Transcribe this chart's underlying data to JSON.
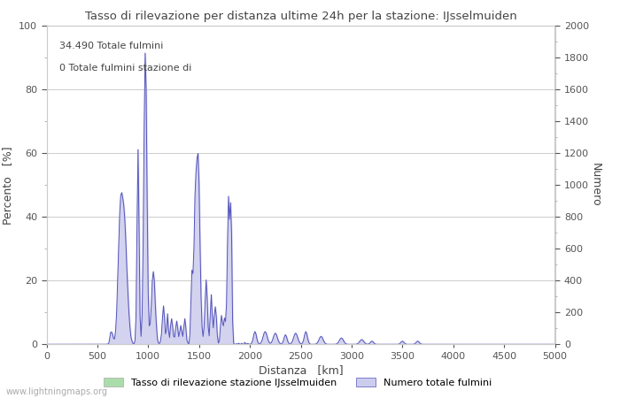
{
  "title": "Tasso di rilevazione per distanza ultime 24h per la stazione: IJsselmuiden",
  "xlabel": "Distanza   [km]",
  "ylabel_left": "Percento   [%]",
  "ylabel_right": "Numero",
  "annotation_line1": "34.490 Totale fulmini",
  "annotation_line2": "0 Totale fulmini stazione di",
  "legend_label1": "Tasso di rilevazione stazione IJsselmuiden",
  "legend_label2": "Numero totale fulmini",
  "watermark": "www.lightningmaps.org",
  "xlim": [
    0,
    5000
  ],
  "ylim_left": [
    0,
    100
  ],
  "ylim_right": [
    0,
    2000
  ],
  "xticks": [
    0,
    500,
    1000,
    1500,
    2000,
    2500,
    3000,
    3500,
    4000,
    4500,
    5000
  ],
  "yticks_left": [
    0,
    20,
    40,
    60,
    80,
    100
  ],
  "yticks_right": [
    0,
    200,
    400,
    600,
    800,
    1000,
    1200,
    1400,
    1600,
    1800,
    2000
  ],
  "line_color": "#5555bb",
  "fill_color": "#ccccee",
  "fill_alpha": 0.85,
  "bg_color": "#ffffff",
  "grid_color": "#cccccc",
  "tick_color": "#555555",
  "label_color": "#444444",
  "legend_color1": "#aaddaa",
  "legend_edge1": "#aaaaaa",
  "minor_tick_color": "#aaaaaa"
}
